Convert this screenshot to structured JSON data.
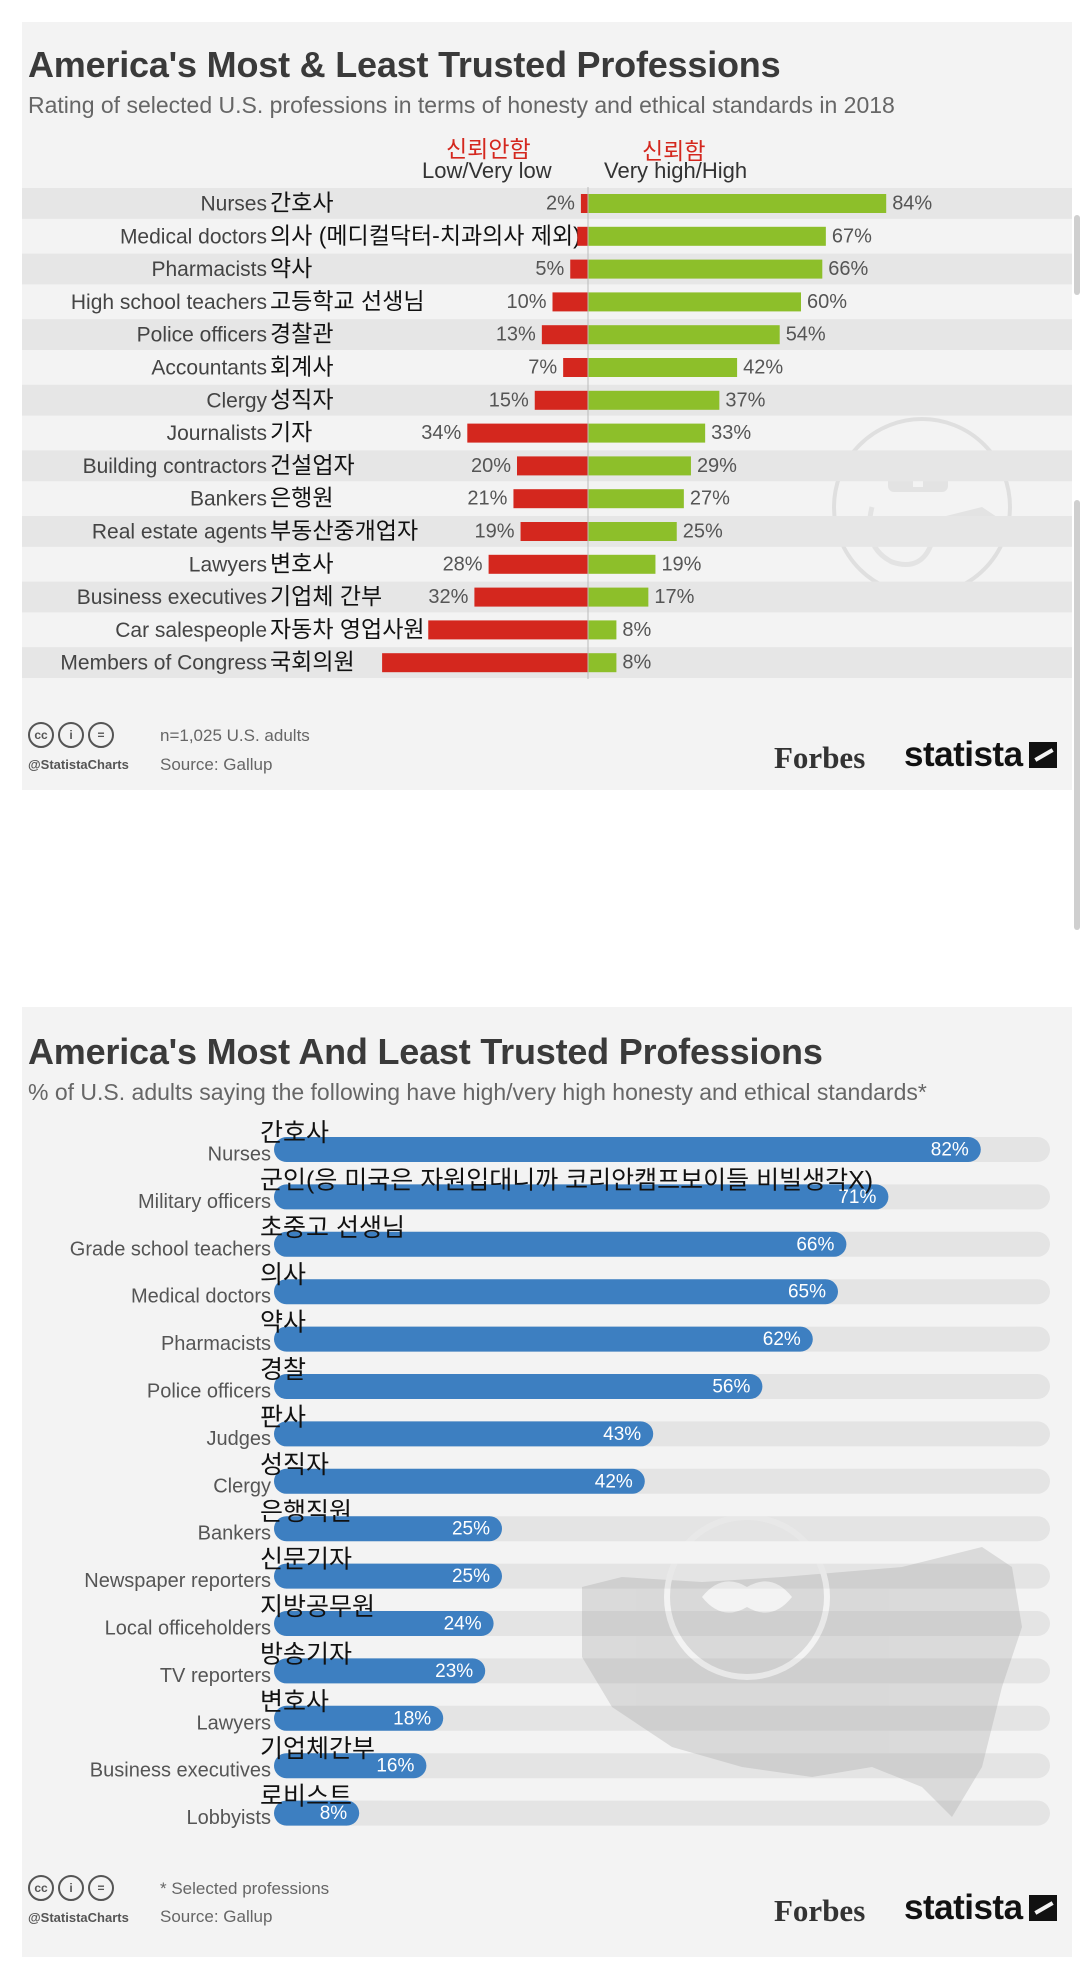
{
  "chart_data": [
    {
      "type": "bar",
      "title": "America's Most & Least Trusted Professions",
      "subtitle": "Rating of selected U.S. professions in terms of honesty and ethical standards in 2018",
      "low_label": "Low/Very low",
      "high_label": "Very high/High",
      "low_label_kr": "신뢰안함",
      "high_label_kr": "신뢰함",
      "colors": {
        "low": "#d4271e",
        "high": "#8dbf2a"
      },
      "categories": [
        "Nurses",
        "Medical doctors",
        "Pharmacists",
        "High school teachers",
        "Police officers",
        "Accountants",
        "Clergy",
        "Journalists",
        "Building contractors",
        "Bankers",
        "Real estate agents",
        "Lawyers",
        "Business executives",
        "Car salespeople",
        "Members of Congress"
      ],
      "categories_kr": [
        "간호사",
        "의사 (메디컬닥터-치과의사 제외)",
        "약사",
        "고등학교 선생님",
        "경찰관",
        "회계사",
        "성직자",
        "기자",
        "건설업자",
        "은행원",
        "부동산중개업자",
        "변호사",
        "기업체 간부",
        "자동차 영업사원",
        "국회의원"
      ],
      "series": [
        {
          "name": "Low/Very low",
          "values": [
            2,
            3,
            5,
            10,
            13,
            7,
            15,
            34,
            20,
            21,
            19,
            28,
            32,
            45,
            58
          ]
        },
        {
          "name": "Very high/High",
          "values": [
            84,
            67,
            66,
            60,
            54,
            42,
            37,
            33,
            29,
            27,
            25,
            19,
            17,
            8,
            8
          ]
        }
      ],
      "labels_low": [
        "2%",
        "",
        "5%",
        "10%",
        "13%",
        "7%",
        "15%",
        "34%",
        "20%",
        "21%",
        "19%",
        "28%",
        "32%",
        "",
        ""
      ],
      "labels_high": [
        "84%",
        "67%",
        "66%",
        "60%",
        "54%",
        "42%",
        "37%",
        "33%",
        "29%",
        "27%",
        "25%",
        "19%",
        "17%",
        "8%",
        "8%"
      ],
      "note": "n=1,025 U.S. adults",
      "source": "Source: Gallup"
    },
    {
      "type": "bar",
      "title": "America's Most And Least Trusted Professions",
      "subtitle": "% of U.S. adults saying the following have high/very high honesty and ethical standards*",
      "colors": {
        "bar": "#3d7fc1",
        "track": "#e4e4e4"
      },
      "categories": [
        "Nurses",
        "Military officers",
        "Grade school teachers",
        "Medical doctors",
        "Pharmacists",
        "Police officers",
        "Judges",
        "Clergy",
        "Bankers",
        "Newspaper reporters",
        "Local officeholders",
        "TV reporters",
        "Lawyers",
        "Business executives",
        "Lobbyists"
      ],
      "categories_kr": [
        "간호사",
        "군인(응 미국은 자원입대니까 코리안캠프보이들 비빌생각X)",
        "초중고 선생님",
        "의사",
        "약사",
        "경찰",
        "판사",
        "성직자",
        "은행직원",
        "신문기자",
        "지방공무원",
        "방송기자",
        "변호사",
        "기업체간부",
        "로비스트"
      ],
      "values": [
        82,
        71,
        66,
        65,
        62,
        56,
        43,
        42,
        25,
        25,
        24,
        23,
        18,
        16,
        8
      ],
      "labels": [
        "82%",
        "71%",
        "66%",
        "65%",
        "62%",
        "56%",
        "43%",
        "42%",
        "25%",
        "25%",
        "24%",
        "23%",
        "18%",
        "16%",
        "8%"
      ],
      "note": "* Selected professions",
      "source": "Source: Gallup"
    }
  ],
  "branding": {
    "handle": "@StatistaCharts",
    "forbes": "Forbes",
    "statista": "statista",
    "cc_icons": [
      "cc-icon",
      "by-icon",
      "nd-icon"
    ]
  }
}
